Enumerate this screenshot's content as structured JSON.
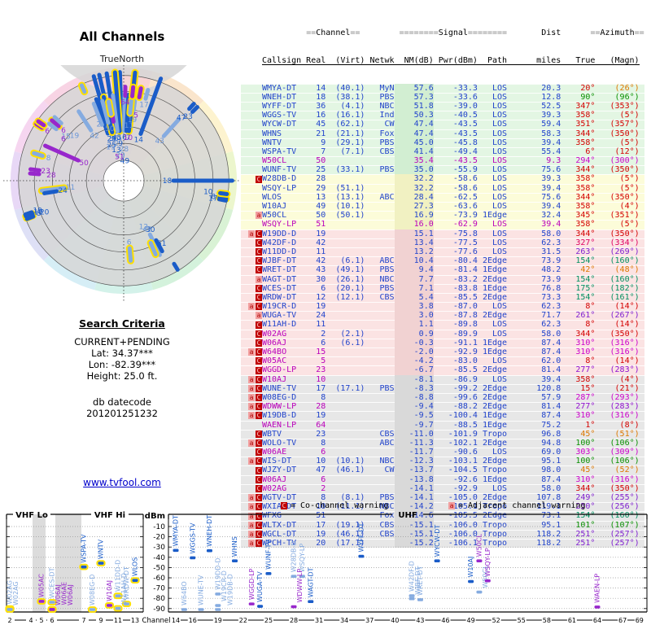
{
  "radar": {
    "title": "All Channels",
    "north_label": "TrueNorth"
  },
  "search": {
    "heading": "Search Criteria",
    "mode": "CURRENT+PENDING",
    "lat": "Lat: 34.37***",
    "lon": "Lon: -82.39***",
    "height": "Height: 25.0 ft.",
    "db_label": "db datecode",
    "db_code": "201201251232",
    "link": "www.tvfool.com"
  },
  "legend": {
    "c_symbol": "C",
    "c_text": "= Co-channel warning",
    "a_symbol": "a",
    "a_text": "= Adjacent channel warning"
  },
  "table": {
    "h1": {
      "channel": "==Channel==",
      "signal": "========Signal========",
      "dist": "Dist",
      "azimuth": "==Azimuth=="
    },
    "h2": [
      "Callsign",
      "Real",
      "(Virt)",
      "Netwk",
      "NM(dB)",
      "Pwr(dBm)",
      "Path",
      "miles",
      "True",
      "(Magn)"
    ]
  },
  "colors": {
    "blue_text": "#2244cc",
    "magenta_text": "#bb00bb",
    "band_green": "#e3f6e3",
    "band_yellow": "#fcfcd9",
    "band_pink": "#fbe3e3",
    "band_gray": "#e7e7e7",
    "nm_green": "#d2eed2",
    "nm_yellow": "#f1f1c2",
    "nm_pink": "#f1d2d2",
    "nm_gray": "#d9d9d9",
    "bar_dark": "#1a5cc8",
    "bar_light": "#85abe0",
    "bar_violet": "#9827cc",
    "outline_yellow": "#ffe000",
    "warn_c_bg": "#c00000",
    "warn_a_bg": "#f2a0a0",
    "radar_sectors": [
      "#f7d4d4",
      "#fae5cc",
      "#fdf3cf",
      "#ecf6cd",
      "#d9f2d5",
      "#d4f2dc",
      "#d4f2ea",
      "#d6eef6",
      "#dee0f6",
      "#e8d8f6",
      "#f6d6f0",
      "#f8d4e4"
    ],
    "radar_gray_band": "#d6d6d6"
  },
  "chart_data": [
    {
      "type": "radar",
      "title": "All Channels",
      "north_label": "TrueNorth",
      "angle_axis": "azimuth degrees true",
      "radial_axis": "signal strength (stronger toward center)",
      "rings": 6,
      "series": "stations"
    },
    {
      "type": "scatter",
      "xlabel": "Channel",
      "ylabel": "dBm",
      "ylim": [
        -97,
        -5
      ],
      "yticks": [
        -10,
        -20,
        -30,
        -40,
        -50,
        -60,
        -70,
        -80,
        -90
      ],
      "panels": [
        {
          "label_lo": "VHF Lo",
          "label_hi": "VHF Hi",
          "xticks": [
            2,
            4,
            5,
            6,
            7,
            9,
            11,
            13
          ]
        },
        {
          "label": "UHF",
          "xticks": [
            14,
            16,
            19,
            22,
            25,
            28,
            31,
            34,
            37,
            40,
            43,
            46,
            49,
            52,
            55,
            58,
            61,
            64,
            67,
            69
          ]
        }
      ],
      "points": "stations: x=real channel, y=pwr_dbm, label=callsign"
    }
  ],
  "stations": [
    {
      "w": "",
      "cs": "WMYA-DT",
      "c": "b",
      "ch": "14",
      "vt": "(40.1)",
      "nw": "MyN",
      "nm": "57.6",
      "pw": "-33.3",
      "pa": "LOS",
      "mi": "20.3",
      "az": 20,
      "mg": 26,
      "bd": "g",
      "sh": "d"
    },
    {
      "w": "",
      "cs": "WNEH-DT",
      "c": "b",
      "ch": "18",
      "vt": "(38.1)",
      "nw": "PBS",
      "nm": "57.3",
      "pw": "-33.6",
      "pa": "LOS",
      "mi": "12.8",
      "az": 90,
      "mg": 96,
      "bd": "g",
      "sh": "d"
    },
    {
      "w": "",
      "cs": "WYFF-DT",
      "c": "b",
      "ch": "36",
      "vt": "(4.1)",
      "nw": "NBC",
      "nm": "51.8",
      "pw": "-39.0",
      "pa": "LOS",
      "mi": "52.5",
      "az": 347,
      "mg": 353,
      "bd": "g",
      "sh": "d"
    },
    {
      "w": "",
      "cs": "WGGS-TV",
      "c": "b",
      "ch": "16",
      "vt": "(16.1)",
      "nw": "Ind",
      "nm": "50.3",
      "pw": "-40.5",
      "pa": "LOS",
      "mi": "39.3",
      "az": 358,
      "mg": 5,
      "bd": "g",
      "sh": "d"
    },
    {
      "w": "",
      "cs": "WYCW-DT",
      "c": "b",
      "ch": "45",
      "vt": "(62.1)",
      "nw": "CW",
      "nm": "47.4",
      "pw": "-43.5",
      "pa": "LOS",
      "mi": "59.4",
      "az": 351,
      "mg": 357,
      "bd": "g",
      "sh": "d"
    },
    {
      "w": "",
      "cs": "WHNS",
      "c": "b",
      "ch": "21",
      "vt": "(21.1)",
      "nw": "Fox",
      "nm": "47.4",
      "pw": "-43.5",
      "pa": "LOS",
      "mi": "58.3",
      "az": 344,
      "mg": 350,
      "bd": "g",
      "sh": "d"
    },
    {
      "w": "",
      "cs": "WNTV",
      "c": "b",
      "ch": "9",
      "vt": "(29.1)",
      "nw": "PBS",
      "nm": "45.0",
      "pw": "-45.8",
      "pa": "LOS",
      "mi": "39.4",
      "az": 358,
      "mg": 5,
      "bd": "g",
      "sh": "d"
    },
    {
      "w": "",
      "cs": "WSPA-TV",
      "c": "b",
      "ch": "7",
      "vt": "(7.1)",
      "nw": "CBS",
      "nm": "41.4",
      "pw": "-49.4",
      "pa": "LOS",
      "mi": "55.4",
      "az": 6,
      "mg": 12,
      "bd": "g",
      "sh": "d"
    },
    {
      "w": "",
      "cs": "W50CL",
      "c": "m",
      "fm": 1,
      "ch": "50",
      "vt": "",
      "nw": "",
      "nm": "35.4",
      "pw": "-43.5",
      "pa": "LOS",
      "mi": "9.3",
      "az": 294,
      "mg": 300,
      "bd": "g",
      "sh": "v"
    },
    {
      "w": "",
      "cs": "WUNF-TV",
      "c": "b",
      "ch": "25",
      "vt": "(33.1)",
      "nw": "PBS",
      "nm": "35.0",
      "pw": "-55.9",
      "pa": "LOS",
      "mi": "75.6",
      "az": 344,
      "mg": 350,
      "bd": "g",
      "sh": "d"
    },
    {
      "w": "C",
      "cs": "W28DB-D",
      "c": "b",
      "ch": "28",
      "vt": "",
      "nw": "",
      "nm": "32.2",
      "pw": "-58.6",
      "pa": "LOS",
      "mi": "39.3",
      "az": 358,
      "mg": 5,
      "bd": "y",
      "sh": "l"
    },
    {
      "w": "",
      "cs": "WSQY-LP",
      "c": "b",
      "ch": "29",
      "vt": "(51.1)",
      "nw": "",
      "nm": "32.2",
      "pw": "-58.6",
      "pa": "LOS",
      "mi": "39.4",
      "az": 358,
      "mg": 5,
      "bd": "y",
      "sh": "l"
    },
    {
      "w": "",
      "cs": "WLOS",
      "c": "b",
      "ch": "13",
      "vt": "(13.1)",
      "nw": "ABC",
      "nm": "28.4",
      "pw": "-62.5",
      "pa": "LOS",
      "mi": "75.6",
      "az": 344,
      "mg": 350,
      "bd": "y",
      "sh": "d"
    },
    {
      "w": "",
      "cs": "W10AJ",
      "c": "b",
      "ch": "49",
      "vt": "(10.1)",
      "nw": "",
      "nm": "27.3",
      "pw": "-63.6",
      "pa": "LOS",
      "mi": "39.4",
      "az": 358,
      "mg": 4,
      "bd": "y",
      "sh": "d"
    },
    {
      "w": "a",
      "cs": "W50CL",
      "c": "b",
      "ch": "50",
      "vt": "(50.1)",
      "nw": "",
      "nm": "16.9",
      "pw": "-73.9",
      "pa": "1Edge",
      "mi": "32.4",
      "az": 345,
      "mg": 351,
      "bd": "y",
      "sh": "l"
    },
    {
      "w": "",
      "cs": "WSQY-LP",
      "c": "m",
      "fm": 1,
      "ch": "51",
      "vt": "",
      "nw": "",
      "nm": "16.0",
      "pw": "-62.9",
      "pa": "LOS",
      "mi": "39.4",
      "az": 358,
      "mg": 5,
      "bd": "y",
      "sh": "v"
    },
    {
      "w": "aC",
      "cs": "W19DD-D",
      "c": "b",
      "ch": "19",
      "vt": "",
      "nw": "",
      "nm": "15.1",
      "pw": "-75.8",
      "pa": "LOS",
      "mi": "58.0",
      "az": 344,
      "mg": 350,
      "bd": "p",
      "sh": "l"
    },
    {
      "w": "C",
      "cs": "W42DF-D",
      "c": "b",
      "ch": "42",
      "vt": "",
      "nw": "",
      "nm": "13.4",
      "pw": "-77.5",
      "pa": "LOS",
      "mi": "62.3",
      "az": 327,
      "mg": 334,
      "bd": "p",
      "sh": "l"
    },
    {
      "w": "C",
      "cs": "W11DD-D",
      "c": "b",
      "ch": "11",
      "vt": "",
      "nw": "",
      "nm": "13.2",
      "pw": "-77.6",
      "pa": "LOS",
      "mi": "31.5",
      "az": 263,
      "mg": 269,
      "bd": "p",
      "sh": "l"
    },
    {
      "w": "C",
      "cs": "WJBF-DT",
      "c": "b",
      "ch": "42",
      "vt": "(6.1)",
      "nw": "ABC",
      "nm": "10.4",
      "pw": "-80.4",
      "pa": "2Edge",
      "mi": "73.9",
      "az": 154,
      "mg": 160,
      "bd": "p",
      "sh": "l"
    },
    {
      "w": "C",
      "cs": "WRET-DT",
      "c": "b",
      "ch": "43",
      "vt": "(49.1)",
      "nw": "PBS",
      "nm": "9.4",
      "pw": "-81.4",
      "pa": "1Edge",
      "mi": "48.2",
      "az": 42,
      "mg": 48,
      "bd": "p",
      "sh": "l"
    },
    {
      "w": "a",
      "cs": "WAGT-DT",
      "c": "b",
      "ch": "30",
      "vt": "(26.1)",
      "nw": "NBC",
      "nm": "7.7",
      "pw": "-83.2",
      "pa": "2Edge",
      "mi": "73.9",
      "az": 154,
      "mg": 160,
      "bd": "p",
      "sh": "d"
    },
    {
      "w": "C",
      "cs": "WCES-DT",
      "c": "b",
      "ch": "6",
      "vt": "(20.1)",
      "nw": "PBS",
      "nm": "7.1",
      "pw": "-83.8",
      "pa": "1Edge",
      "mi": "76.8",
      "az": 175,
      "mg": 182,
      "bd": "p",
      "sh": "l"
    },
    {
      "w": "C",
      "cs": "WRDW-DT",
      "c": "b",
      "ch": "12",
      "vt": "(12.1)",
      "nw": "CBS",
      "nm": "5.4",
      "pw": "-85.5",
      "pa": "2Edge",
      "mi": "73.3",
      "az": 154,
      "mg": 161,
      "bd": "p",
      "sh": "l"
    },
    {
      "w": "aC",
      "cs": "W19CR-D",
      "c": "b",
      "ch": "19",
      "vt": "",
      "nw": "",
      "nm": "3.8",
      "pw": "-87.0",
      "pa": "LOS",
      "mi": "62.3",
      "az": 8,
      "mg": 14,
      "bd": "p",
      "sh": "l"
    },
    {
      "w": "a",
      "cs": "WUGA-TV",
      "c": "b",
      "ch": "24",
      "vt": "",
      "nw": "",
      "nm": "3.0",
      "pw": "-87.8",
      "pa": "2Edge",
      "mi": "71.7",
      "az": 261,
      "mg": 267,
      "bd": "p",
      "sh": "d"
    },
    {
      "w": "C",
      "cs": "W11AH-D",
      "c": "b",
      "ch": "11",
      "vt": "",
      "nw": "",
      "nm": "1.1",
      "pw": "-89.8",
      "pa": "LOS",
      "mi": "62.3",
      "az": 8,
      "mg": 14,
      "bd": "p",
      "sh": "l"
    },
    {
      "w": "C",
      "cs": "W02AG",
      "c": "m",
      "ch": "2",
      "vt": "(2.1)",
      "nw": "",
      "nm": "0.9",
      "pw": "-89.9",
      "pa": "LOS",
      "mi": "58.0",
      "az": 344,
      "mg": 350,
      "bd": "p",
      "sh": "l"
    },
    {
      "w": "C",
      "cs": "W06AJ",
      "c": "m",
      "ch": "6",
      "vt": "(6.1)",
      "nw": "",
      "nm": "-0.3",
      "pw": "-91.1",
      "pa": "1Edge",
      "mi": "87.4",
      "az": 310,
      "mg": 316,
      "bd": "p",
      "sh": "v"
    },
    {
      "w": "aC",
      "cs": "W64BO",
      "c": "m",
      "ch": "15",
      "vt": "",
      "nw": "",
      "nm": "-2.0",
      "pw": "-92.9",
      "pa": "1Edge",
      "mi": "87.4",
      "az": 310,
      "mg": 316,
      "bd": "p",
      "sh": "l"
    },
    {
      "w": "C",
      "cs": "W05AC",
      "c": "m",
      "ch": "5",
      "vt": "",
      "nw": "",
      "nm": "-4.2",
      "pw": "-83.0",
      "pa": "LOS",
      "mi": "62.0",
      "az": 8,
      "mg": 14,
      "bd": "p",
      "sh": "v"
    },
    {
      "w": "C",
      "cs": "WGGD-LP",
      "c": "m",
      "ch": "23",
      "vt": "",
      "nw": "",
      "nm": "-6.7",
      "pw": "-85.5",
      "pa": "2Edge",
      "mi": "81.4",
      "az": 277,
      "mg": 283,
      "bd": "p",
      "sh": "v"
    },
    {
      "w": "aC",
      "cs": "W10AJ",
      "c": "m",
      "ch": "10",
      "vt": "",
      "nw": "",
      "nm": "-8.1",
      "pw": "-86.9",
      "pa": "LOS",
      "mi": "39.4",
      "az": 358,
      "mg": 4,
      "bd": "x",
      "sh": "v"
    },
    {
      "w": "aC",
      "cs": "WUNE-TV",
      "c": "b",
      "ch": "17",
      "vt": "(17.1)",
      "nw": "PBS",
      "nm": "-8.3",
      "pw": "-99.2",
      "pa": "2Edge",
      "mi": "120.8",
      "az": 15,
      "mg": 21,
      "bd": "x",
      "sh": "l"
    },
    {
      "w": "aC",
      "cs": "W08EG-D",
      "c": "b",
      "ch": "8",
      "vt": "",
      "nw": "",
      "nm": "-8.8",
      "pw": "-99.6",
      "pa": "2Edge",
      "mi": "57.9",
      "az": 287,
      "mg": 293,
      "bd": "x",
      "sh": "l"
    },
    {
      "w": "aC",
      "cs": "WDWW-LP",
      "c": "m",
      "ch": "28",
      "vt": "",
      "nw": "",
      "nm": "-9.4",
      "pw": "-88.2",
      "pa": "2Edge",
      "mi": "81.4",
      "az": 277,
      "mg": 283,
      "bd": "x",
      "sh": "v"
    },
    {
      "w": "aC",
      "cs": "W19DB-D",
      "c": "b",
      "ch": "19",
      "vt": "",
      "nw": "",
      "nm": "-9.5",
      "pw": "-100.4",
      "pa": "1Edge",
      "mi": "87.4",
      "az": 310,
      "mg": 316,
      "bd": "x",
      "sh": "l"
    },
    {
      "w": "",
      "cs": "WAEN-LP",
      "c": "m",
      "ch": "64",
      "vt": "",
      "nw": "",
      "nm": "-9.7",
      "pw": "-88.5",
      "pa": "1Edge",
      "mi": "75.2",
      "az": 1,
      "mg": 8,
      "bd": "x",
      "sh": "v"
    },
    {
      "w": "C",
      "cs": "WBTV",
      "c": "b",
      "ch": "23",
      "vt": "",
      "nw": "CBS",
      "nm": "-11.0",
      "pw": "-101.9",
      "pa": "Tropo",
      "mi": "96.8",
      "az": 45,
      "mg": 51,
      "bd": "x",
      "sh": "d"
    },
    {
      "w": "aC",
      "cs": "WOLO-TV",
      "c": "b",
      "ch": "8",
      "vt": "",
      "nw": "ABC",
      "nm": "-11.3",
      "pw": "-102.1",
      "pa": "2Edge",
      "mi": "94.8",
      "az": 100,
      "mg": 106,
      "bd": "x",
      "sh": "d"
    },
    {
      "w": "C",
      "cs": "W06AE",
      "c": "m",
      "ch": "6",
      "vt": "",
      "nw": "",
      "nm": "-11.7",
      "pw": "-90.6",
      "pa": "LOS",
      "mi": "69.0",
      "az": 303,
      "mg": 309,
      "bd": "x",
      "sh": "v"
    },
    {
      "w": "aC",
      "cs": "WIS-DT",
      "c": "b",
      "ch": "10",
      "vt": "(10.1)",
      "nw": "NBC",
      "nm": "-12.3",
      "pw": "-103.1",
      "pa": "2Edge",
      "mi": "95.1",
      "az": 100,
      "mg": 106,
      "bd": "x",
      "sh": "d"
    },
    {
      "w": "C",
      "cs": "WJZY-DT",
      "c": "b",
      "ch": "47",
      "vt": "(46.1)",
      "nw": "CW",
      "nm": "-13.7",
      "pw": "-104.5",
      "pa": "Tropo",
      "mi": "98.0",
      "az": 45,
      "mg": 52,
      "bd": "x",
      "sh": "d"
    },
    {
      "w": "C",
      "cs": "W06AJ",
      "c": "m",
      "ch": "6",
      "vt": "",
      "nw": "",
      "nm": "-13.8",
      "pw": "-92.6",
      "pa": "1Edge",
      "mi": "87.4",
      "az": 310,
      "mg": 316,
      "bd": "x",
      "sh": "v"
    },
    {
      "w": "C",
      "cs": "W02AG",
      "c": "m",
      "ch": "2",
      "vt": "",
      "nw": "",
      "nm": "-14.1",
      "pw": "-92.9",
      "pa": "LOS",
      "mi": "58.0",
      "az": 344,
      "mg": 350,
      "bd": "x",
      "sh": "l"
    },
    {
      "w": "aC",
      "cs": "WGTV-DT",
      "c": "b",
      "ch": "8",
      "vt": "(8.1)",
      "nw": "PBS",
      "nm": "-14.1",
      "pw": "-105.0",
      "pa": "2Edge",
      "mi": "107.8",
      "az": 249,
      "mg": 255,
      "bd": "x",
      "sh": "d"
    },
    {
      "w": "aC",
      "cs": "WXIA-DT",
      "c": "b",
      "ch": "10",
      "vt": "(11.1)",
      "nw": "NBC",
      "nm": "-14.2",
      "pw": "-105.1",
      "pa": "Tropo",
      "mi": "119.1",
      "az": 250,
      "mg": 256,
      "bd": "x",
      "sh": "d"
    },
    {
      "w": "aC",
      "cs": "WFXG",
      "c": "b",
      "ch": "51",
      "vt": "",
      "nw": "Fox",
      "nm": "-14.6",
      "pw": "-105.5",
      "pa": "2Edge",
      "mi": "73.1",
      "az": 154,
      "mg": 160,
      "bd": "x",
      "sh": "d"
    },
    {
      "w": "aC",
      "cs": "WLTX-DT",
      "c": "b",
      "ch": "17",
      "vt": "(19.1)",
      "nw": "CBS",
      "nm": "-15.1",
      "pw": "-106.0",
      "pa": "Tropo",
      "mi": "95.1",
      "az": 101,
      "mg": 107,
      "bd": "x",
      "sh": "d"
    },
    {
      "w": "aC",
      "cs": "WGCL-DT",
      "c": "b",
      "ch": "19",
      "vt": "(46.1)",
      "nw": "CBS",
      "nm": "-15.1",
      "pw": "-106.0",
      "pa": "Tropo",
      "mi": "118.2",
      "az": 251,
      "mg": 257,
      "bd": "x",
      "sh": "d"
    },
    {
      "w": "aC",
      "cs": "WPCH-TV",
      "c": "b",
      "ch": "20",
      "vt": "(17.1)",
      "nw": "",
      "nm": "-15.2",
      "pw": "-106.1",
      "pa": "Tropo",
      "mi": "118.2",
      "az": 251,
      "mg": 257,
      "bd": "x",
      "sh": "d"
    }
  ]
}
